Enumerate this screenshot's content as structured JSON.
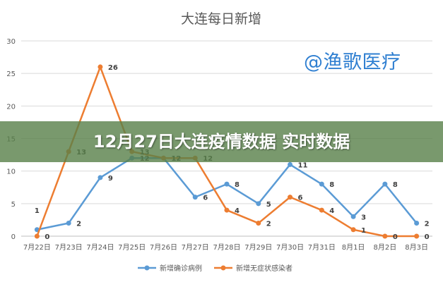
{
  "banner": {
    "text": "12月27日大连疫情数据 实时数据"
  },
  "watermark": {
    "text": "@渔歌医疗"
  },
  "chart_data": {
    "type": "line",
    "title": "大连每日新增",
    "categories": [
      "7月22日",
      "7月23日",
      "7月24日",
      "7月25日",
      "7月26日",
      "7月27日",
      "7月28日",
      "7月29日",
      "7月30日",
      "7月31日",
      "8月1日",
      "8月2日",
      "8月3日"
    ],
    "ylim": [
      0,
      30
    ],
    "yticks": [
      0,
      5,
      10,
      15,
      20,
      25,
      30
    ],
    "grid": true,
    "legend_position": "bottom",
    "series": [
      {
        "name": "新增确诊病例",
        "color": "#5b9bd5",
        "values": [
          1,
          2,
          9,
          12,
          12,
          6,
          8,
          5,
          11,
          8,
          3,
          8,
          2
        ]
      },
      {
        "name": "新增无症状感染者",
        "color": "#ed7d31",
        "values": [
          0,
          13,
          26,
          13,
          12,
          12,
          4,
          2,
          6,
          4,
          1,
          0,
          0
        ]
      }
    ]
  }
}
